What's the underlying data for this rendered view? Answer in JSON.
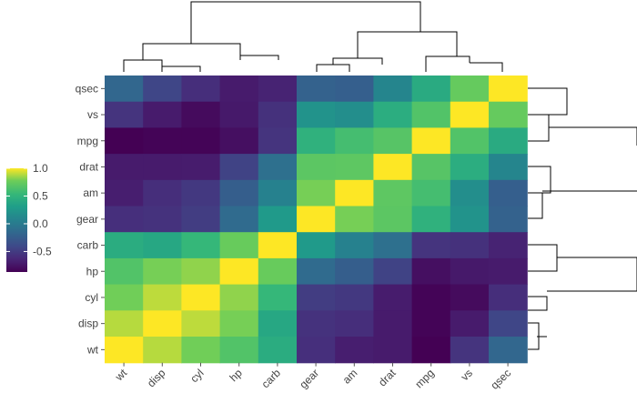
{
  "chart_data": {
    "type": "heatmap",
    "row_labels": [
      "qsec",
      "vs",
      "mpg",
      "drat",
      "am",
      "gear",
      "carb",
      "hp",
      "cyl",
      "disp",
      "wt"
    ],
    "col_labels": [
      "wt",
      "disp",
      "cyl",
      "hp",
      "carb",
      "gear",
      "am",
      "drat",
      "mpg",
      "vs",
      "qsec"
    ],
    "values": [
      [
        -0.17,
        -0.43,
        -0.59,
        -0.71,
        -0.66,
        -0.21,
        -0.23,
        0.09,
        0.42,
        0.74,
        1.0
      ],
      [
        -0.55,
        -0.71,
        -0.81,
        -0.72,
        -0.57,
        0.21,
        0.17,
        0.44,
        0.66,
        1.0,
        0.74
      ],
      [
        -0.87,
        -0.85,
        -0.85,
        -0.78,
        -0.55,
        0.48,
        0.6,
        0.68,
        1.0,
        0.66,
        0.42
      ],
      [
        -0.71,
        -0.71,
        -0.7,
        -0.45,
        -0.09,
        0.7,
        0.71,
        1.0,
        0.68,
        0.44,
        0.09
      ],
      [
        -0.69,
        -0.59,
        -0.52,
        -0.24,
        0.06,
        0.79,
        1.0,
        0.71,
        0.6,
        0.17,
        -0.23
      ],
      [
        -0.58,
        -0.56,
        -0.49,
        -0.13,
        0.27,
        1.0,
        0.79,
        0.7,
        0.48,
        0.21,
        -0.21
      ],
      [
        0.43,
        0.39,
        0.53,
        0.75,
        1.0,
        0.27,
        0.06,
        -0.09,
        -0.55,
        -0.57,
        -0.66
      ],
      [
        0.66,
        0.79,
        0.83,
        1.0,
        0.75,
        -0.13,
        -0.24,
        -0.45,
        -0.78,
        -0.72,
        -0.71
      ],
      [
        0.78,
        0.9,
        1.0,
        0.83,
        0.53,
        -0.49,
        -0.52,
        -0.7,
        -0.85,
        -0.81,
        -0.59
      ],
      [
        0.89,
        1.0,
        0.9,
        0.79,
        0.39,
        -0.56,
        -0.59,
        -0.71,
        -0.85,
        -0.71,
        -0.43
      ],
      [
        1.0,
        0.89,
        0.78,
        0.66,
        0.43,
        -0.58,
        -0.69,
        -0.71,
        -0.87,
        -0.55,
        -0.17
      ]
    ],
    "colorscale": "viridis",
    "vmin": -0.87,
    "vmax": 1.0,
    "legend": {
      "title": "",
      "ticks": [
        1.0,
        0.5,
        0.0,
        -0.5
      ],
      "tick_labels": [
        "1.0",
        "0.5",
        "0.0",
        "-0.5"
      ],
      "placement": "left"
    },
    "dendrograms": [
      "top",
      "right"
    ],
    "title": "",
    "xlabel": "",
    "ylabel": ""
  }
}
